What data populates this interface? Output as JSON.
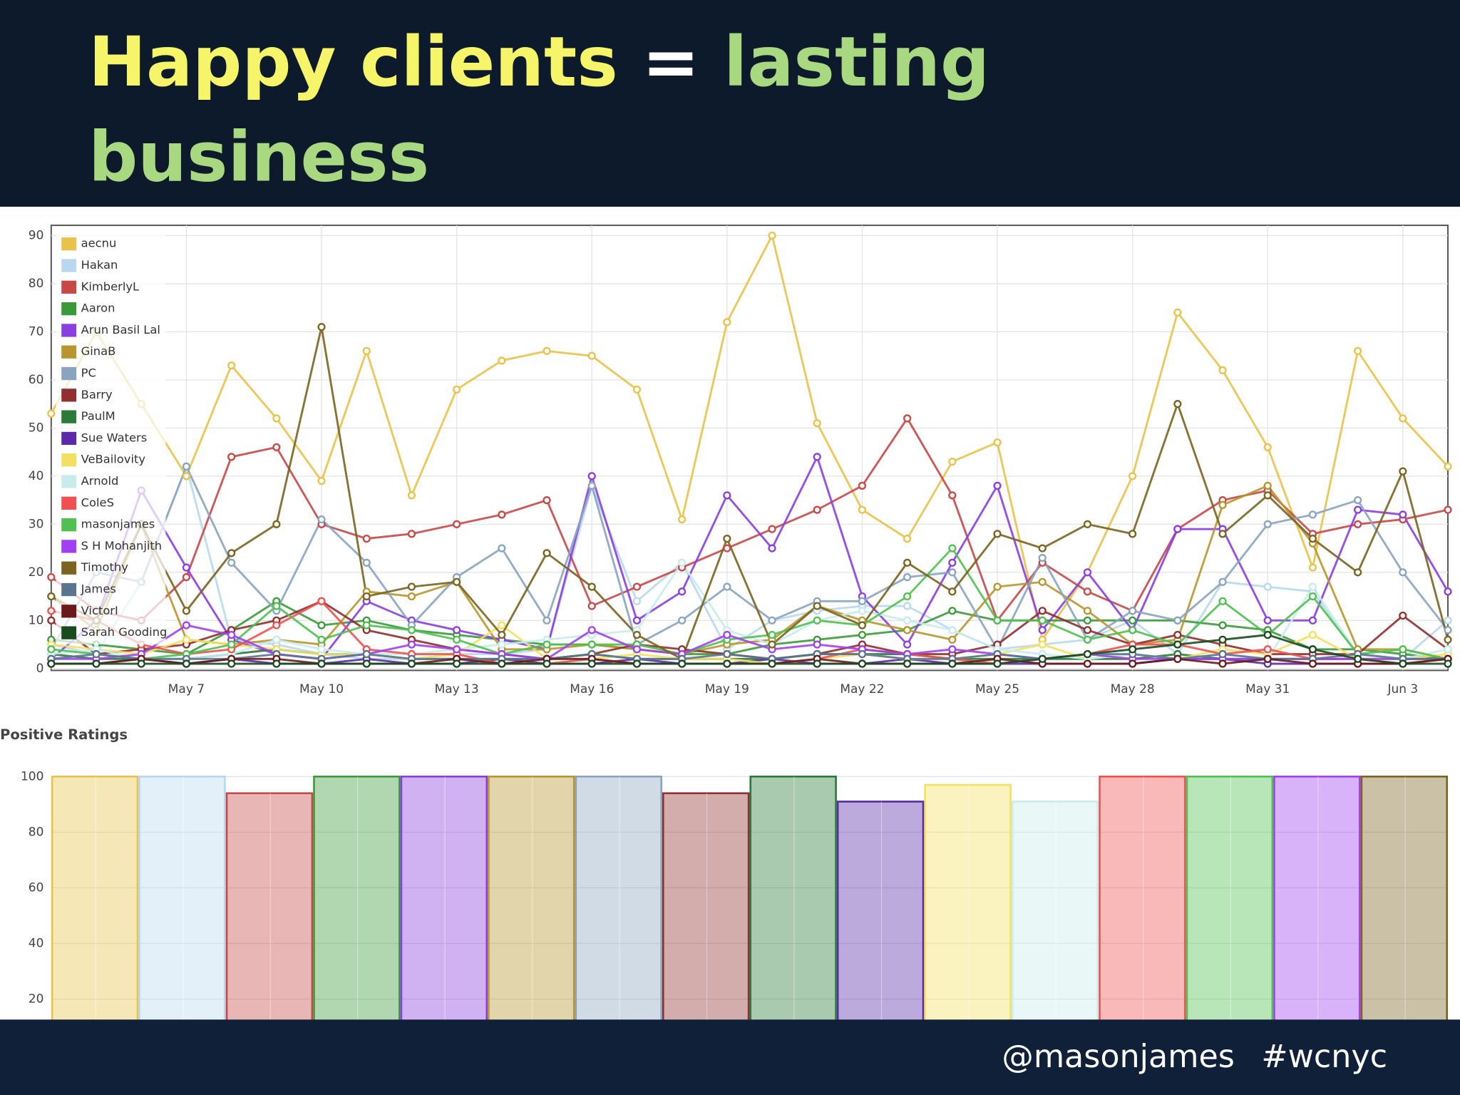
{
  "slide": {
    "title": [
      "Happy clients",
      "=",
      "lasting",
      "business"
    ],
    "footer": {
      "handle": "@masonjames",
      "hashtag": "#wcnyc"
    }
  },
  "chart_data": [
    {
      "type": "line",
      "grid": true,
      "legend": "upper left",
      "categories": [
        null,
        null,
        null,
        "May 7",
        null,
        null,
        "May 10",
        null,
        null,
        "May 13",
        null,
        null,
        "May 16",
        null,
        null,
        "May 19",
        null,
        null,
        "May 22",
        null,
        null,
        "May 25",
        null,
        null,
        "May 28",
        null,
        null,
        "May 31",
        null,
        null,
        "Jun 3",
        null
      ],
      "ylim": [
        0,
        90
      ],
      "yticks": [
        0,
        10,
        20,
        30,
        40,
        50,
        60,
        70,
        80,
        90
      ],
      "series": [
        {
          "name": "aecnu",
          "color": "#e8c24a",
          "values": [
            53,
            70,
            55,
            40,
            63,
            52,
            39,
            66,
            36,
            58,
            64,
            66,
            65,
            58,
            31,
            72,
            90,
            51,
            33,
            27,
            43,
            47,
            6,
            20,
            40,
            74,
            62,
            46,
            21,
            66,
            52,
            42
          ]
        },
        {
          "name": "Hakan",
          "color": "#b8d8f0",
          "values": [
            5,
            3,
            18,
            42,
            6,
            5,
            3,
            2,
            2,
            3,
            3,
            4,
            38,
            14,
            22,
            4,
            10,
            12,
            13,
            13,
            8,
            4,
            5,
            6,
            10,
            3,
            18,
            17,
            16,
            3,
            2,
            10
          ]
        },
        {
          "name": "KimberlyL",
          "color": "#c84848",
          "values": [
            19,
            12,
            10,
            19,
            44,
            46,
            30,
            27,
            28,
            30,
            32,
            35,
            13,
            17,
            21,
            25,
            29,
            33,
            38,
            52,
            36,
            10,
            22,
            16,
            12,
            29,
            35,
            37,
            28,
            30,
            31,
            33
          ]
        },
        {
          "name": "Aaron",
          "color": "#3a9a3a",
          "values": [
            6,
            5,
            4,
            3,
            8,
            14,
            9,
            10,
            8,
            7,
            6,
            5,
            5,
            4,
            3,
            3,
            5,
            6,
            7,
            8,
            12,
            10,
            10,
            10,
            10,
            10,
            9,
            8,
            4,
            4,
            3,
            2
          ]
        },
        {
          "name": "Arun Basil Lal",
          "color": "#8a3ee0",
          "values": [
            2,
            10,
            37,
            21,
            6,
            3,
            2,
            14,
            10,
            8,
            6,
            4,
            40,
            10,
            16,
            36,
            25,
            44,
            15,
            5,
            22,
            38,
            8,
            20,
            8,
            29,
            29,
            10,
            10,
            33,
            32,
            16
          ]
        },
        {
          "name": "GinaB",
          "color": "#b8962e",
          "values": [
            15,
            8,
            30,
            6,
            5,
            6,
            5,
            16,
            15,
            18,
            4,
            4,
            5,
            4,
            3,
            5,
            6,
            13,
            10,
            8,
            6,
            17,
            18,
            12,
            5,
            6,
            34,
            38,
            26,
            4,
            4,
            2
          ]
        },
        {
          "name": "PC",
          "color": "#8aa4c0",
          "values": [
            4,
            20,
            18,
            42,
            22,
            12,
            31,
            22,
            9,
            19,
            25,
            10,
            38,
            5,
            10,
            17,
            10,
            14,
            14,
            19,
            20,
            4,
            23,
            6,
            12,
            10,
            18,
            30,
            32,
            35,
            20,
            8
          ]
        },
        {
          "name": "Barry",
          "color": "#903030",
          "values": [
            10,
            3,
            4,
            5,
            8,
            10,
            14,
            8,
            6,
            4,
            3,
            2,
            3,
            5,
            4,
            3,
            2,
            3,
            5,
            3,
            3,
            5,
            12,
            8,
            5,
            7,
            5,
            3,
            3,
            3,
            11,
            4
          ]
        },
        {
          "name": "PaulM",
          "color": "#2a7a3a",
          "values": [
            3,
            2,
            2,
            2,
            3,
            4,
            3,
            3,
            2,
            2,
            2,
            2,
            3,
            2,
            2,
            2,
            2,
            3,
            3,
            3,
            2,
            2,
            2,
            2,
            2,
            3,
            2,
            2,
            2,
            2,
            2,
            2
          ]
        },
        {
          "name": "Sue Waters",
          "color": "#5a2aa8",
          "values": [
            1,
            1,
            2,
            1,
            2,
            1,
            1,
            2,
            1,
            1,
            2,
            1,
            1,
            2,
            1,
            1,
            2,
            1,
            1,
            2,
            1,
            1,
            1,
            1,
            1,
            2,
            2,
            1,
            1,
            1,
            1,
            2
          ]
        },
        {
          "name": "VeBailovity",
          "color": "#f4e060",
          "values": [
            5,
            4,
            3,
            6,
            5,
            4,
            3,
            3,
            2,
            3,
            9,
            2,
            2,
            3,
            2,
            2,
            1,
            2,
            3,
            2,
            2,
            3,
            5,
            2,
            3,
            2,
            4,
            3,
            7,
            2,
            2,
            3
          ]
        },
        {
          "name": "Arnold",
          "color": "#c8ecec",
          "values": [
            3,
            4,
            2,
            2,
            3,
            6,
            4,
            3,
            3,
            4,
            5,
            6,
            7,
            8,
            22,
            8,
            5,
            10,
            12,
            10,
            8,
            4,
            3,
            2,
            3,
            2,
            3,
            2,
            17,
            3,
            2,
            4
          ]
        },
        {
          "name": "ColeS",
          "color": "#f05050",
          "values": [
            12,
            10,
            5,
            3,
            4,
            9,
            14,
            4,
            3,
            3,
            1,
            1,
            2,
            1,
            1,
            1,
            1,
            2,
            4,
            3,
            2,
            1,
            2,
            3,
            5,
            5,
            3,
            4,
            2,
            2,
            1,
            2
          ]
        },
        {
          "name": "masonjames",
          "color": "#50c050",
          "values": [
            4,
            3,
            2,
            3,
            5,
            13,
            6,
            9,
            8,
            6,
            3,
            5,
            5,
            5,
            3,
            6,
            7,
            10,
            9,
            15,
            25,
            10,
            10,
            6,
            8,
            5,
            14,
            7,
            15,
            3,
            4,
            2
          ]
        },
        {
          "name": "S H Mohanjith",
          "color": "#a040f0",
          "values": [
            2,
            2,
            3,
            9,
            7,
            3,
            2,
            3,
            5,
            4,
            3,
            2,
            8,
            4,
            3,
            7,
            4,
            5,
            4,
            3,
            4,
            3,
            2,
            3,
            2,
            2,
            2,
            2,
            2,
            2,
            2,
            2
          ]
        },
        {
          "name": "Timothy",
          "color": "#7a6420",
          "values": [
            15,
            10,
            30,
            12,
            24,
            30,
            71,
            15,
            17,
            18,
            7,
            24,
            17,
            7,
            2,
            27,
            5,
            13,
            9,
            22,
            16,
            28,
            25,
            30,
            28,
            55,
            28,
            36,
            27,
            20,
            41,
            6
          ]
        },
        {
          "name": "James",
          "color": "#5a7490",
          "values": [
            2,
            3,
            2,
            2,
            2,
            3,
            2,
            3,
            2,
            2,
            2,
            2,
            3,
            2,
            2,
            3,
            2,
            3,
            3,
            2,
            2,
            3,
            2,
            3,
            3,
            2,
            3,
            2,
            2,
            3,
            2,
            2
          ]
        },
        {
          "name": "VictorI",
          "color": "#6a1a1a",
          "values": [
            1,
            1,
            2,
            1,
            2,
            2,
            1,
            1,
            1,
            2,
            1,
            2,
            2,
            1,
            1,
            1,
            1,
            2,
            1,
            1,
            1,
            2,
            1,
            1,
            1,
            2,
            1,
            2,
            1,
            1,
            1,
            2
          ]
        },
        {
          "name": "Sarah Gooding",
          "color": "#1a4a20",
          "values": [
            1,
            1,
            1,
            1,
            1,
            1,
            1,
            1,
            1,
            1,
            1,
            1,
            1,
            1,
            1,
            1,
            1,
            1,
            1,
            1,
            1,
            1,
            2,
            3,
            4,
            5,
            6,
            7,
            4,
            2,
            1,
            1
          ]
        }
      ]
    },
    {
      "type": "bar",
      "title": "Positive Ratings",
      "grid": true,
      "values": [
        100,
        100,
        94,
        100,
        100,
        100,
        100,
        94,
        100,
        91,
        97,
        91,
        100,
        100,
        100,
        100
      ],
      "colors": [
        "#e8c24a",
        "#b8d8f0",
        "#c84848",
        "#3a9a3a",
        "#8a3ee0",
        "#b8962e",
        "#8aa4c0",
        "#903030",
        "#2a7a3a",
        "#5a2aa8",
        "#f4e060",
        "#c8ecec",
        "#f05050",
        "#50c050",
        "#a040f0",
        "#7a6420"
      ],
      "ylim": [
        0,
        100
      ],
      "yticks": [
        20,
        40,
        60,
        80,
        100
      ]
    }
  ]
}
